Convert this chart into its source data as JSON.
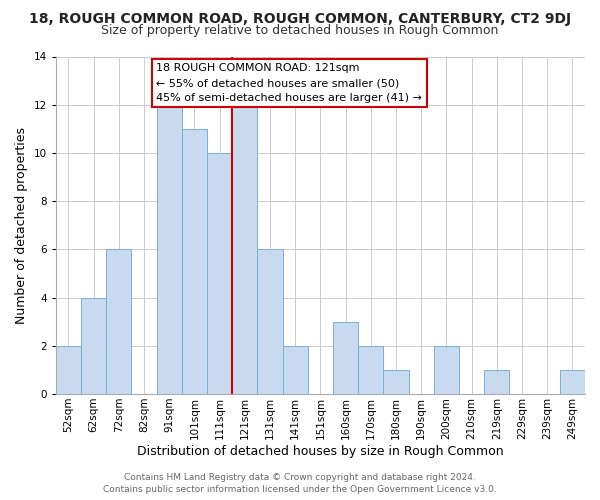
{
  "title": "18, ROUGH COMMON ROAD, ROUGH COMMON, CANTERBURY, CT2 9DJ",
  "subtitle": "Size of property relative to detached houses in Rough Common",
  "xlabel": "Distribution of detached houses by size in Rough Common",
  "ylabel": "Number of detached properties",
  "bar_labels": [
    "52sqm",
    "62sqm",
    "72sqm",
    "82sqm",
    "91sqm",
    "101sqm",
    "111sqm",
    "121sqm",
    "131sqm",
    "141sqm",
    "151sqm",
    "160sqm",
    "170sqm",
    "180sqm",
    "190sqm",
    "200sqm",
    "210sqm",
    "219sqm",
    "229sqm",
    "239sqm",
    "249sqm"
  ],
  "bar_heights": [
    2,
    4,
    6,
    0,
    12,
    11,
    10,
    12,
    6,
    2,
    0,
    3,
    2,
    1,
    0,
    2,
    0,
    1,
    0,
    0,
    1
  ],
  "bar_color": "#c8daf0",
  "bar_edge_color": "#7bafd4",
  "reference_line_x": 7,
  "reference_line_color": "#cc0000",
  "ylim": [
    0,
    14
  ],
  "yticks": [
    0,
    2,
    4,
    6,
    8,
    10,
    12,
    14
  ],
  "grid_color": "#cccccc",
  "background_color": "#ffffff",
  "legend_text_line1": "18 ROUGH COMMON ROAD: 121sqm",
  "legend_text_line2": "← 55% of detached houses are smaller (50)",
  "legend_text_line3": "45% of semi-detached houses are larger (41) →",
  "footer_line1": "Contains HM Land Registry data © Crown copyright and database right 2024.",
  "footer_line2": "Contains public sector information licensed under the Open Government Licence v3.0.",
  "title_fontsize": 10,
  "subtitle_fontsize": 9,
  "axis_label_fontsize": 9,
  "tick_fontsize": 7.5,
  "footer_fontsize": 6.5,
  "legend_fontsize": 8
}
